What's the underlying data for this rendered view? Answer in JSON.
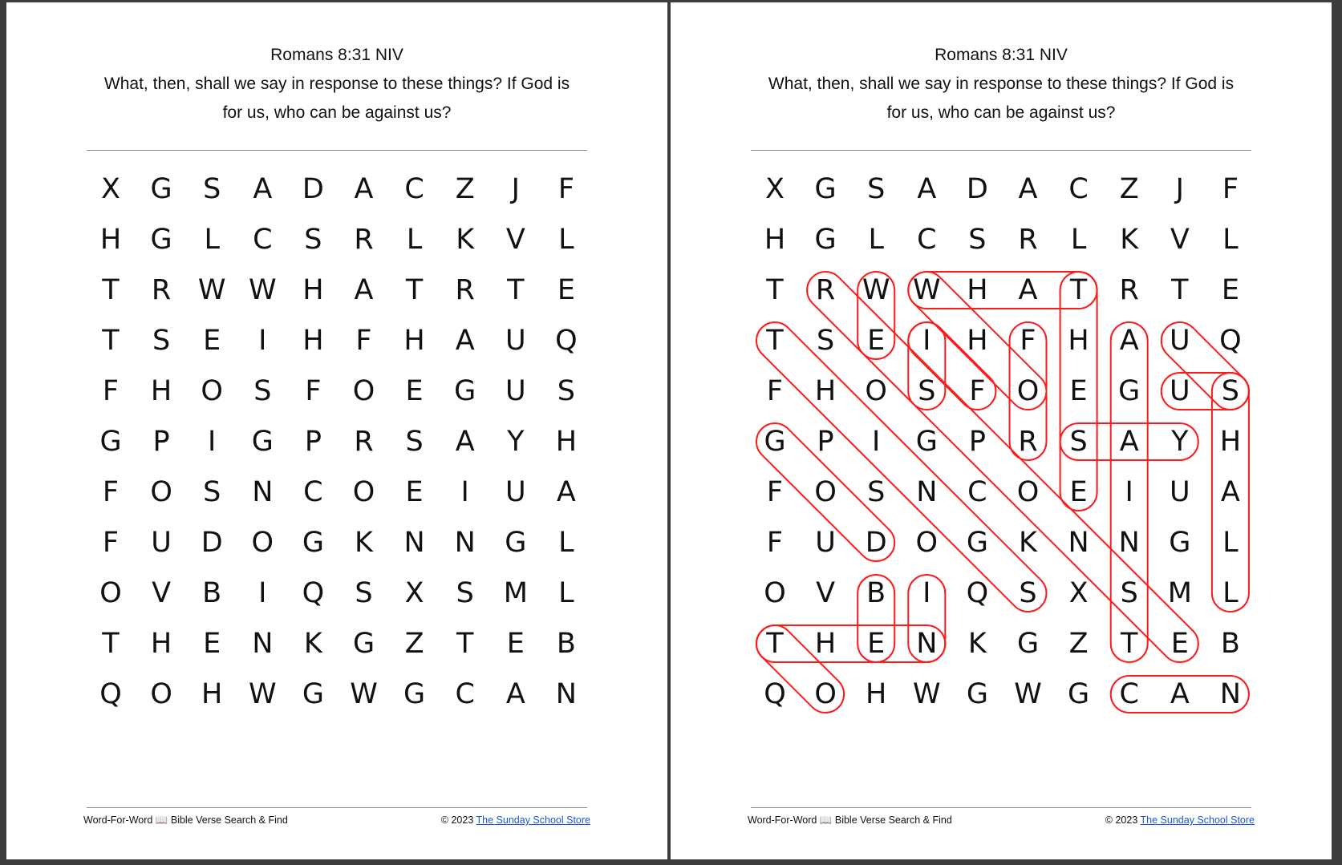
{
  "puzzle": {
    "title": "Romans 8:31 NIV",
    "verse": "What, then, shall we say in response to these things? If God is for us, who can be against us?",
    "grid": [
      "XGSADACZJF",
      "HGLCSRLKVL",
      "TRWWHATRTE",
      "TSEIHFHAUQ",
      "FHOSFOEGUS",
      "GPIGPRSAYH",
      "FOSNCOEIUA",
      "FUDOGKNNGL",
      "OVBIQSXSML",
      "THENKGZTEB",
      "QOHWGWGCAN"
    ]
  },
  "answer_key": {
    "highlight_color": "#ff1a1a",
    "words": [
      {
        "word": "WHAT",
        "start": [
          2,
          3
        ],
        "end": [
          2,
          6
        ]
      },
      {
        "word": "THEN",
        "start": [
          9,
          0
        ],
        "end": [
          9,
          3
        ]
      },
      {
        "word": "SHALL",
        "start": [
          4,
          9
        ],
        "end": [
          8,
          9
        ]
      },
      {
        "word": "WE",
        "start": [
          2,
          2
        ],
        "end": [
          3,
          2
        ]
      },
      {
        "word": "SAY",
        "start": [
          5,
          6
        ],
        "end": [
          5,
          8
        ]
      },
      {
        "word": "IN",
        "start": [
          8,
          3
        ],
        "end": [
          9,
          3
        ]
      },
      {
        "word": "RESPONSE",
        "start": [
          2,
          1
        ],
        "end": [
          9,
          8
        ]
      },
      {
        "word": "TO",
        "start": [
          9,
          0
        ],
        "end": [
          10,
          1
        ]
      },
      {
        "word": "THESE",
        "start": [
          2,
          6
        ],
        "end": [
          6,
          6
        ]
      },
      {
        "word": "THINGS",
        "start": [
          3,
          0
        ],
        "end": [
          8,
          5
        ]
      },
      {
        "word": "IF",
        "start": [
          3,
          3
        ],
        "end": [
          4,
          4
        ]
      },
      {
        "word": "GOD",
        "start": [
          5,
          0
        ],
        "end": [
          7,
          2
        ]
      },
      {
        "word": "IS",
        "start": [
          3,
          3
        ],
        "end": [
          4,
          3
        ]
      },
      {
        "word": "FOR",
        "start": [
          3,
          5
        ],
        "end": [
          5,
          5
        ]
      },
      {
        "word": "US",
        "start": [
          3,
          8
        ],
        "end": [
          4,
          9
        ]
      },
      {
        "word": "WHO",
        "start": [
          2,
          3
        ],
        "end": [
          4,
          5
        ]
      },
      {
        "word": "CAN",
        "start": [
          10,
          7
        ],
        "end": [
          10,
          9
        ]
      },
      {
        "word": "BE",
        "start": [
          8,
          2
        ],
        "end": [
          9,
          2
        ]
      },
      {
        "word": "AGAINST",
        "start": [
          3,
          7
        ],
        "end": [
          9,
          7
        ]
      },
      {
        "word": "US",
        "start": [
          4,
          8
        ],
        "end": [
          4,
          9
        ]
      }
    ]
  },
  "footer": {
    "left": "Word-For-Word 📖 Bible Verse Search & Find",
    "copyright": "© 2023",
    "link": "The Sunday School Store"
  }
}
